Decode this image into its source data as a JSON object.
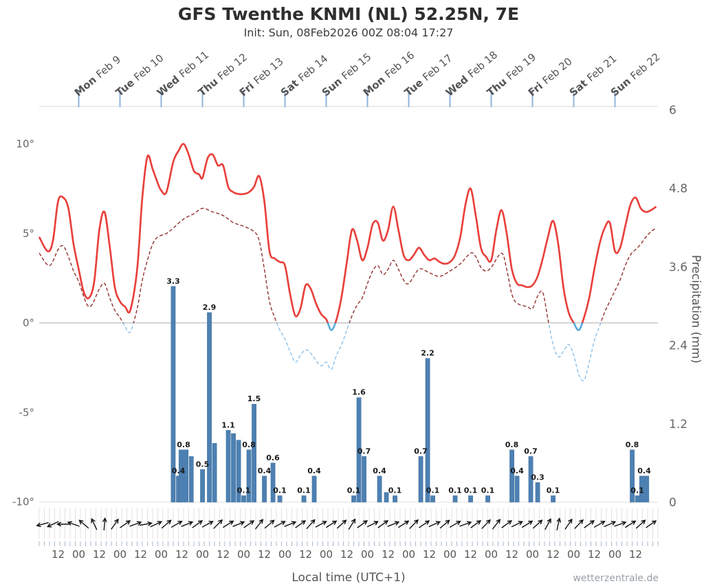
{
  "header": {
    "title": "GFS Twenthe KNMI (NL) 52.25N, 7E",
    "subtitle": "Init: Sun, 08Feb2026 00Z 08:04 17:27"
  },
  "footer": {
    "x_axis_title": "Local time (UTC+1)",
    "watermark": "wetterzentrale.de"
  },
  "chart_data": {
    "type": "line",
    "title": "GFS Twenthe KNMI (NL) 52.25N, 7E",
    "x_axis": {
      "label": "Local time (UTC+1)",
      "start": "2026-02-08 01:00 local",
      "hours_span": 360,
      "day_ticks": [
        {
          "day": "Mon",
          "date": "Feb 9"
        },
        {
          "day": "Tue",
          "date": "Feb 10"
        },
        {
          "day": "Wed",
          "date": "Feb 11"
        },
        {
          "day": "Thu",
          "date": "Feb 12"
        },
        {
          "day": "Fri",
          "date": "Feb 13"
        },
        {
          "day": "Sat",
          "date": "Feb 14"
        },
        {
          "day": "Sun",
          "date": "Feb 15"
        },
        {
          "day": "Mon",
          "date": "Feb 16"
        },
        {
          "day": "Tue",
          "date": "Feb 17"
        },
        {
          "day": "Wed",
          "date": "Feb 18"
        },
        {
          "day": "Thu",
          "date": "Feb 19"
        },
        {
          "day": "Fri",
          "date": "Feb 20"
        },
        {
          "day": "Sat",
          "date": "Feb 21"
        },
        {
          "day": "Sun",
          "date": "Feb 22"
        }
      ],
      "time_tick_labels": [
        "12",
        "00",
        "12",
        "00",
        "12",
        "00",
        "12",
        "00",
        "12",
        "00",
        "12",
        "00",
        "12",
        "00",
        "12",
        "00",
        "12",
        "00",
        "12",
        "00",
        "12",
        "00",
        "12",
        "00",
        "12",
        "00",
        "12",
        "00",
        "12"
      ],
      "first_time_tick_hour": 11,
      "time_tick_step_hours": 12
    },
    "temp_axis": {
      "unit": "degC",
      "tick_values": [
        10,
        5,
        0,
        -5,
        -10
      ],
      "tick_labels": [
        "10°",
        "5°",
        "0°",
        "-5°",
        "-10°"
      ]
    },
    "precip_axis": {
      "title": "Precipitation (mm)",
      "tick_values": [
        6,
        4.8,
        3.6,
        2.4,
        1.2,
        0
      ],
      "tick_labels": [
        "6",
        "4.8",
        "3.6",
        "2.4",
        "1.2",
        "0"
      ],
      "range": [
        0,
        6
      ]
    },
    "series": [
      {
        "name": "2m temperature",
        "style": "solid",
        "color_above_zero": "#e8413c",
        "color_below_zero": "#58aadc",
        "points": [
          [
            0,
            4.8
          ],
          [
            5,
            4.0
          ],
          [
            8,
            4.6
          ],
          [
            11,
            6.8
          ],
          [
            14,
            7.0
          ],
          [
            17,
            6.4
          ],
          [
            20,
            4.4
          ],
          [
            23,
            3.0
          ],
          [
            26,
            1.7
          ],
          [
            29,
            1.4
          ],
          [
            32,
            2.3
          ],
          [
            35,
            5.2
          ],
          [
            38,
            6.2
          ],
          [
            41,
            4.3
          ],
          [
            44,
            2.0
          ],
          [
            47,
            1.2
          ],
          [
            50,
            0.9
          ],
          [
            53,
            0.7
          ],
          [
            57,
            3.0
          ],
          [
            60,
            7.0
          ],
          [
            63,
            9.3
          ],
          [
            66,
            8.6
          ],
          [
            69,
            7.8
          ],
          [
            71,
            7.4
          ],
          [
            74,
            7.3
          ],
          [
            78,
            9.0
          ],
          [
            81,
            9.6
          ],
          [
            84,
            10.0
          ],
          [
            87,
            9.4
          ],
          [
            90,
            8.5
          ],
          [
            93,
            8.3
          ],
          [
            95,
            8.1
          ],
          [
            98,
            9.2
          ],
          [
            101,
            9.4
          ],
          [
            104,
            8.8
          ],
          [
            107,
            8.8
          ],
          [
            110,
            7.6
          ],
          [
            113,
            7.3
          ],
          [
            116,
            7.2
          ],
          [
            119,
            7.2
          ],
          [
            122,
            7.3
          ],
          [
            125,
            7.6
          ],
          [
            128,
            8.2
          ],
          [
            131,
            6.8
          ],
          [
            134,
            4.0
          ],
          [
            137,
            3.6
          ],
          [
            140,
            3.4
          ],
          [
            143,
            3.2
          ],
          [
            146,
            1.6
          ],
          [
            149,
            0.4
          ],
          [
            152,
            0.8
          ],
          [
            155,
            2.1
          ],
          [
            158,
            1.9
          ],
          [
            161,
            1.1
          ],
          [
            164,
            0.5
          ],
          [
            167,
            0.2
          ],
          [
            170,
            -0.4
          ],
          [
            173,
            0.2
          ],
          [
            176,
            1.5
          ],
          [
            179,
            3.4
          ],
          [
            182,
            5.2
          ],
          [
            185,
            4.6
          ],
          [
            188,
            3.5
          ],
          [
            191,
            4.2
          ],
          [
            194,
            5.5
          ],
          [
            197,
            5.6
          ],
          [
            200,
            4.6
          ],
          [
            203,
            5.2
          ],
          [
            206,
            6.5
          ],
          [
            209,
            5.2
          ],
          [
            212,
            3.8
          ],
          [
            215,
            3.5
          ],
          [
            218,
            3.8
          ],
          [
            221,
            4.2
          ],
          [
            224,
            3.8
          ],
          [
            227,
            3.5
          ],
          [
            230,
            3.6
          ],
          [
            233,
            3.4
          ],
          [
            236,
            3.3
          ],
          [
            239,
            3.4
          ],
          [
            242,
            3.8
          ],
          [
            245,
            4.8
          ],
          [
            248,
            6.6
          ],
          [
            251,
            7.5
          ],
          [
            254,
            6.0
          ],
          [
            257,
            4.2
          ],
          [
            260,
            3.7
          ],
          [
            263,
            3.5
          ],
          [
            266,
            5.2
          ],
          [
            269,
            6.3
          ],
          [
            272,
            5.0
          ],
          [
            275,
            3.0
          ],
          [
            278,
            2.2
          ],
          [
            281,
            2.1
          ],
          [
            284,
            2.0
          ],
          [
            287,
            2.1
          ],
          [
            290,
            2.6
          ],
          [
            293,
            3.6
          ],
          [
            296,
            4.8
          ],
          [
            299,
            5.7
          ],
          [
            302,
            4.4
          ],
          [
            305,
            2.0
          ],
          [
            308,
            0.6
          ],
          [
            311,
            0.0
          ],
          [
            314,
            -0.4
          ],
          [
            317,
            0.3
          ],
          [
            320,
            1.4
          ],
          [
            323,
            3.0
          ],
          [
            326,
            4.4
          ],
          [
            329,
            5.3
          ],
          [
            332,
            5.6
          ],
          [
            335,
            4.0
          ],
          [
            338,
            4.2
          ],
          [
            341,
            5.4
          ],
          [
            344,
            6.6
          ],
          [
            347,
            7.0
          ],
          [
            350,
            6.4
          ],
          [
            353,
            6.2
          ],
          [
            356,
            6.3
          ],
          [
            359,
            6.5
          ]
        ]
      },
      {
        "name": "Dew point",
        "style": "dashed",
        "color_above_zero": "#90302e",
        "color_below_zero": "#8cc0e8",
        "points": [
          [
            0,
            3.9
          ],
          [
            6,
            3.2
          ],
          [
            11,
            4.1
          ],
          [
            14,
            4.3
          ],
          [
            17,
            3.7
          ],
          [
            20,
            2.9
          ],
          [
            23,
            2.3
          ],
          [
            29,
            0.9
          ],
          [
            35,
            1.9
          ],
          [
            38,
            2.2
          ],
          [
            41,
            1.4
          ],
          [
            44,
            0.7
          ],
          [
            47,
            0.3
          ],
          [
            50,
            -0.2
          ],
          [
            53,
            -0.5
          ],
          [
            57,
            0.8
          ],
          [
            60,
            2.4
          ],
          [
            63,
            3.5
          ],
          [
            66,
            4.4
          ],
          [
            69,
            4.8
          ],
          [
            74,
            5.0
          ],
          [
            78,
            5.3
          ],
          [
            84,
            5.8
          ],
          [
            90,
            6.1
          ],
          [
            95,
            6.4
          ],
          [
            101,
            6.2
          ],
          [
            107,
            6.0
          ],
          [
            113,
            5.6
          ],
          [
            119,
            5.4
          ],
          [
            125,
            5.1
          ],
          [
            128,
            4.6
          ],
          [
            131,
            3.0
          ],
          [
            134,
            1.2
          ],
          [
            137,
            0.3
          ],
          [
            140,
            -0.4
          ],
          [
            143,
            -0.9
          ],
          [
            146,
            -1.6
          ],
          [
            149,
            -2.2
          ],
          [
            152,
            -1.8
          ],
          [
            155,
            -1.5
          ],
          [
            158,
            -1.7
          ],
          [
            161,
            -2.1
          ],
          [
            164,
            -2.4
          ],
          [
            167,
            -2.2
          ],
          [
            170,
            -2.6
          ],
          [
            173,
            -1.8
          ],
          [
            176,
            -1.2
          ],
          [
            179,
            -0.4
          ],
          [
            182,
            0.4
          ],
          [
            185,
            1.0
          ],
          [
            188,
            1.4
          ],
          [
            191,
            2.2
          ],
          [
            194,
            2.9
          ],
          [
            197,
            3.2
          ],
          [
            200,
            2.7
          ],
          [
            203,
            3.0
          ],
          [
            206,
            3.5
          ],
          [
            209,
            3.0
          ],
          [
            212,
            2.4
          ],
          [
            215,
            2.2
          ],
          [
            221,
            3.0
          ],
          [
            227,
            2.8
          ],
          [
            233,
            2.6
          ],
          [
            239,
            2.9
          ],
          [
            245,
            3.3
          ],
          [
            251,
            3.9
          ],
          [
            254,
            3.7
          ],
          [
            257,
            3.1
          ],
          [
            260,
            2.9
          ],
          [
            263,
            3.1
          ],
          [
            269,
            3.9
          ],
          [
            272,
            3.0
          ],
          [
            275,
            1.6
          ],
          [
            278,
            1.1
          ],
          [
            284,
            0.9
          ],
          [
            287,
            0.8
          ],
          [
            290,
            1.5
          ],
          [
            293,
            1.7
          ],
          [
            296,
            0.2
          ],
          [
            299,
            -1.2
          ],
          [
            302,
            -1.9
          ],
          [
            305,
            -1.6
          ],
          [
            308,
            -1.2
          ],
          [
            311,
            -1.8
          ],
          [
            314,
            -2.9
          ],
          [
            317,
            -3.2
          ],
          [
            320,
            -2.2
          ],
          [
            323,
            -1.0
          ],
          [
            326,
            -0.2
          ],
          [
            329,
            0.6
          ],
          [
            332,
            1.2
          ],
          [
            335,
            1.8
          ],
          [
            338,
            2.4
          ],
          [
            341,
            3.2
          ],
          [
            344,
            3.8
          ],
          [
            347,
            4.1
          ],
          [
            350,
            4.4
          ],
          [
            353,
            4.8
          ],
          [
            356,
            5.1
          ],
          [
            359,
            5.3
          ]
        ]
      }
    ],
    "precip_bars": {
      "color": "#4d80b2",
      "bars": [
        {
          "t": 78,
          "v": 3.3
        },
        {
          "t": 81,
          "v": 0.4
        },
        {
          "t": 84,
          "v": 0.8,
          "w": 6
        },
        {
          "t": 88.5,
          "v": 0.7,
          "lab": 0
        },
        {
          "t": 95,
          "v": 0.5
        },
        {
          "t": 99,
          "v": 2.9
        },
        {
          "t": 102,
          "v": 0.9,
          "lab": 0
        },
        {
          "t": 110,
          "v": 1.1
        },
        {
          "t": 113,
          "v": 1.05,
          "lab": 0
        },
        {
          "t": 116,
          "v": 0.95,
          "lab": 0
        },
        {
          "t": 119,
          "v": 0.1
        },
        {
          "t": 122,
          "v": 0.8
        },
        {
          "t": 125,
          "v": 1.5
        },
        {
          "t": 131,
          "v": 0.4
        },
        {
          "t": 136,
          "v": 0.6
        },
        {
          "t": 140,
          "v": 0.1
        },
        {
          "t": 154,
          "v": 0.1
        },
        {
          "t": 160,
          "v": 0.4
        },
        {
          "t": 183,
          "v": 0.1
        },
        {
          "t": 186,
          "v": 1.6
        },
        {
          "t": 189,
          "v": 0.7
        },
        {
          "t": 198,
          "v": 0.4
        },
        {
          "t": 202,
          "v": 0.15,
          "lab": 0
        },
        {
          "t": 207,
          "v": 0.1
        },
        {
          "t": 222,
          "v": 0.7
        },
        {
          "t": 226,
          "v": 2.2
        },
        {
          "t": 229,
          "v": 0.1
        },
        {
          "t": 242,
          "v": 0.1
        },
        {
          "t": 251,
          "v": 0.1
        },
        {
          "t": 261,
          "v": 0.1
        },
        {
          "t": 275,
          "v": 0.8
        },
        {
          "t": 278,
          "v": 0.4
        },
        {
          "t": 286,
          "v": 0.7
        },
        {
          "t": 290,
          "v": 0.3
        },
        {
          "t": 299,
          "v": 0.1
        },
        {
          "t": 345,
          "v": 0.8
        },
        {
          "t": 348,
          "v": 0.1
        },
        {
          "t": 352,
          "v": 0.4,
          "w": 6
        }
      ]
    },
    "wind_barbs": {
      "start_hour": 2,
      "step_hours": 6,
      "angles_deg": [
        195,
        205,
        180,
        160,
        140,
        115,
        85,
        55,
        35,
        20,
        10,
        25,
        40,
        30,
        22,
        35,
        28,
        45,
        32,
        22,
        35,
        52,
        40,
        28,
        22,
        35,
        48,
        28,
        32,
        42,
        58,
        36,
        26,
        36,
        22,
        32,
        46,
        34,
        24,
        40,
        30,
        20,
        36,
        46,
        52,
        36,
        26,
        32,
        42,
        62,
        78,
        56,
        46,
        36,
        30,
        24,
        20,
        32,
        42,
        34
      ]
    },
    "colors": {
      "day_tick": "#8fb3dc",
      "zero_line": "#aaaaaa",
      "frame": "#d9d9d9",
      "comb": "#e0e0e0",
      "comb_tick": "#a8b8d0",
      "barb": "#111111"
    }
  }
}
